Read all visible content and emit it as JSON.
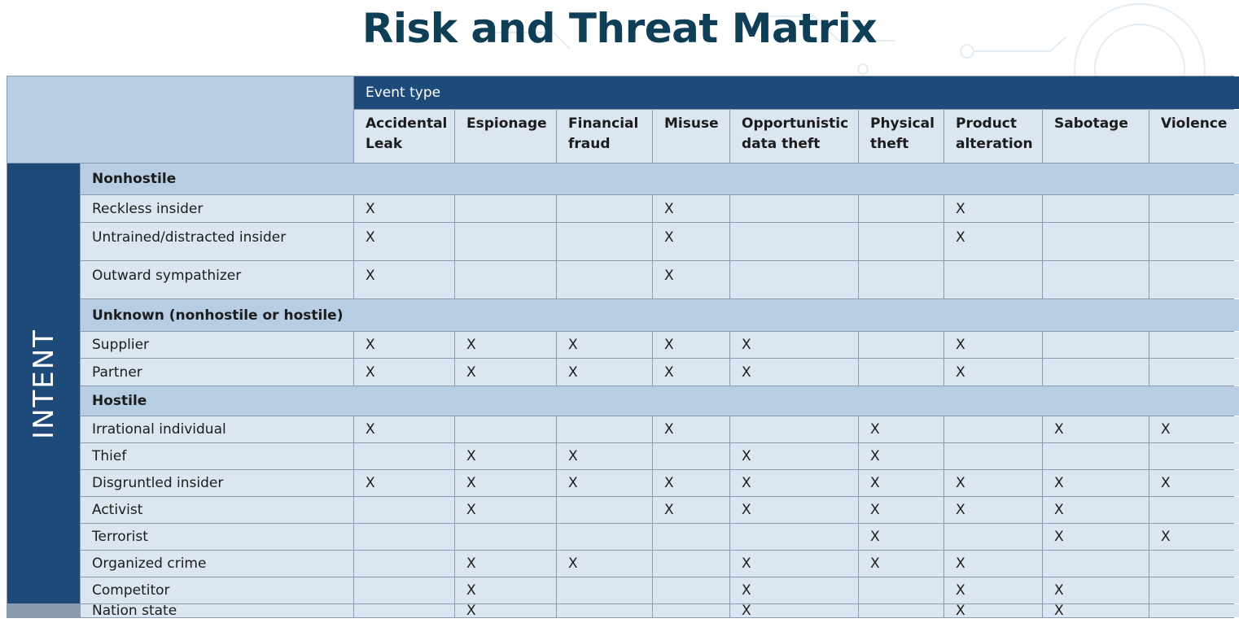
{
  "title": "Risk and Threat Matrix",
  "event_type_label": "Event type",
  "intent_label": "INTENT",
  "columns": [
    {
      "line1": "Accidental",
      "line2": "Leak"
    },
    {
      "line1": "Espionage",
      "line2": ""
    },
    {
      "line1": "Financial",
      "line2": "fraud"
    },
    {
      "line1": "Misuse",
      "line2": ""
    },
    {
      "line1": "Opportunistic",
      "line2": "data theft"
    },
    {
      "line1": "Physical",
      "line2": "theft"
    },
    {
      "line1": "Product",
      "line2": "alteration"
    },
    {
      "line1": "Sabotage",
      "line2": ""
    },
    {
      "line1": "Violence",
      "line2": ""
    }
  ],
  "groups": [
    {
      "name": "Nonhostile",
      "rows": [
        {
          "label": "Reckless insider",
          "marks": [
            "X",
            "",
            "",
            "X",
            "",
            "",
            "X",
            "",
            ""
          ]
        },
        {
          "label": "Untrained/distracted insider",
          "marks": [
            "X",
            "",
            "",
            "X",
            "",
            "",
            "X",
            "",
            ""
          ]
        },
        {
          "label": "Outward sympathizer",
          "marks": [
            "X",
            "",
            "",
            "X",
            "",
            "",
            "",
            "",
            ""
          ]
        }
      ]
    },
    {
      "name": "Unknown (nonhostile or hostile)",
      "rows": [
        {
          "label": "Supplier",
          "marks": [
            "X",
            "X",
            "X",
            "X",
            "X",
            "",
            "X",
            "",
            ""
          ]
        },
        {
          "label": "Partner",
          "marks": [
            "X",
            "X",
            "X",
            "X",
            "X",
            "",
            "X",
            "",
            ""
          ]
        }
      ]
    },
    {
      "name": "Hostile",
      "rows": [
        {
          "label": "Irrational individual",
          "marks": [
            "X",
            "",
            "",
            "X",
            "",
            "X",
            "",
            "X",
            "X"
          ]
        },
        {
          "label": "Thief",
          "marks": [
            "",
            "X",
            "X",
            "",
            "X",
            "X",
            "",
            "",
            ""
          ]
        },
        {
          "label": "Disgruntled insider",
          "marks": [
            "X",
            "X",
            "X",
            "X",
            "X",
            "X",
            "X",
            "X",
            "X"
          ]
        },
        {
          "label": "Activist",
          "marks": [
            "",
            "X",
            "",
            "X",
            "X",
            "X",
            "X",
            "X",
            ""
          ]
        },
        {
          "label": "Terrorist",
          "marks": [
            "",
            "",
            "",
            "",
            "",
            "X",
            "",
            "X",
            "X"
          ]
        },
        {
          "label": "Organized crime",
          "marks": [
            "",
            "X",
            "X",
            "",
            "X",
            "X",
            "X",
            "",
            ""
          ]
        },
        {
          "label": "Competitor",
          "marks": [
            "",
            "X",
            "",
            "",
            "X",
            "",
            "X",
            "X",
            ""
          ]
        },
        {
          "label": "Nation state",
          "marks": [
            "",
            "X",
            "",
            "",
            "X",
            "",
            "X",
            "X",
            ""
          ]
        }
      ]
    }
  ]
}
